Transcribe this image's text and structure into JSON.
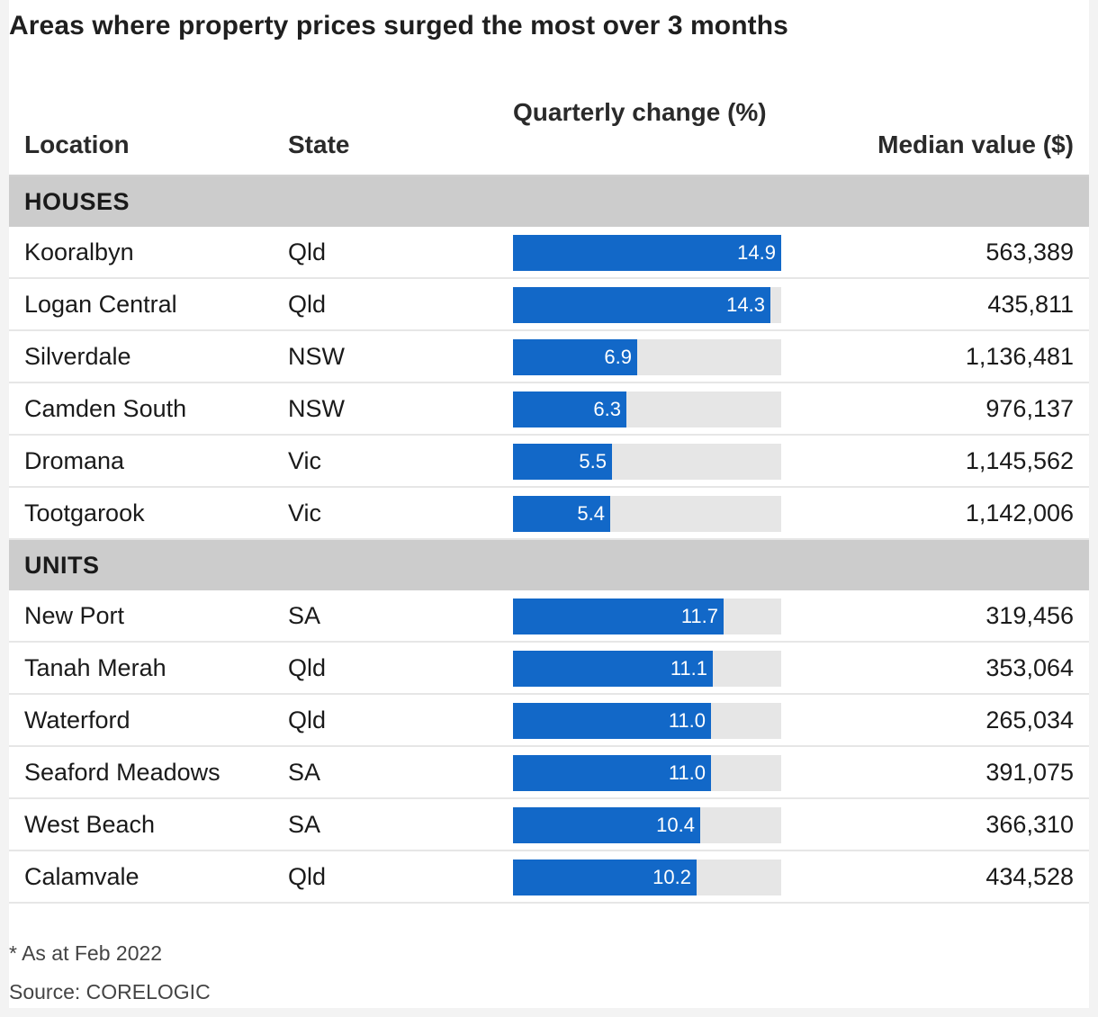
{
  "title": "Areas where property prices surged the most over 3 months",
  "columns": {
    "location": "Location",
    "state": "State",
    "change": "Quarterly change (%)",
    "median": "Median value ($)"
  },
  "chart_data": {
    "type": "table",
    "bar_max": 14.9,
    "bar_color": "#1268c8",
    "track_color": "#e6e6e6",
    "sections": [
      {
        "label": "HOUSES",
        "rows": [
          {
            "location": "Kooralbyn",
            "state": "Qld",
            "change": 14.9,
            "change_label": "14.9",
            "median": "563,389"
          },
          {
            "location": "Logan Central",
            "state": "Qld",
            "change": 14.3,
            "change_label": "14.3",
            "median": "435,811"
          },
          {
            "location": "Silverdale",
            "state": "NSW",
            "change": 6.9,
            "change_label": "6.9",
            "median": "1,136,481"
          },
          {
            "location": "Camden South",
            "state": "NSW",
            "change": 6.3,
            "change_label": "6.3",
            "median": "976,137"
          },
          {
            "location": "Dromana",
            "state": "Vic",
            "change": 5.5,
            "change_label": "5.5",
            "median": "1,145,562"
          },
          {
            "location": "Tootgarook",
            "state": "Vic",
            "change": 5.4,
            "change_label": "5.4",
            "median": "1,142,006"
          }
        ]
      },
      {
        "label": "UNITS",
        "rows": [
          {
            "location": "New Port",
            "state": "SA",
            "change": 11.7,
            "change_label": "11.7",
            "median": "319,456"
          },
          {
            "location": "Tanah Merah",
            "state": "Qld",
            "change": 11.1,
            "change_label": "11.1",
            "median": "353,064"
          },
          {
            "location": "Waterford",
            "state": "Qld",
            "change": 11.0,
            "change_label": "11.0",
            "median": "265,034"
          },
          {
            "location": "Seaford Meadows",
            "state": "SA",
            "change": 11.0,
            "change_label": "11.0",
            "median": "391,075"
          },
          {
            "location": "West Beach",
            "state": "SA",
            "change": 10.4,
            "change_label": "10.4",
            "median": "366,310"
          },
          {
            "location": "Calamvale",
            "state": "Qld",
            "change": 10.2,
            "change_label": "10.2",
            "median": "434,528"
          }
        ]
      }
    ]
  },
  "footnote": "* As at Feb 2022",
  "source": "Source: CORELOGIC"
}
